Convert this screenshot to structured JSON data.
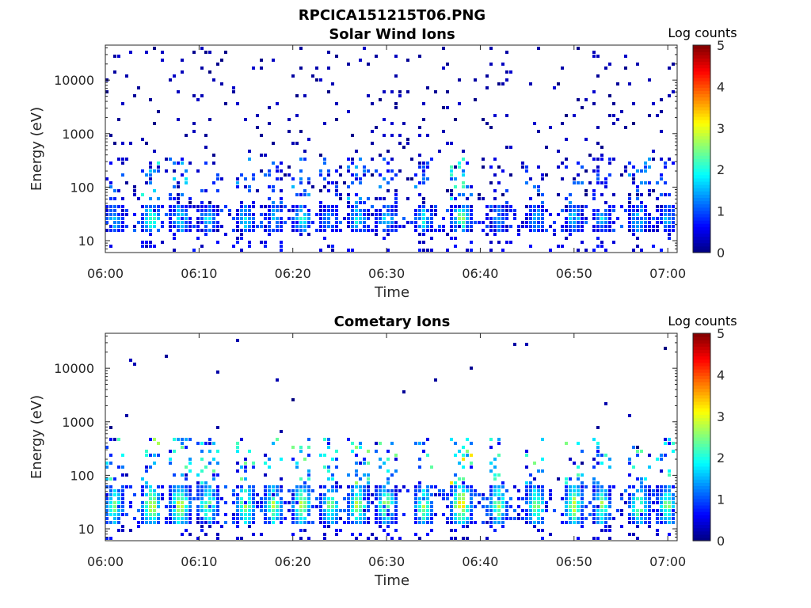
{
  "figure": {
    "title": "RPCICA151215T06.PNG"
  },
  "chart_data": [
    {
      "type": "heatmap",
      "title": "Solar Wind Ions",
      "xlabel": "Time",
      "ylabel": "Energy (eV)",
      "x_ticks": [
        "06:00",
        "06:10",
        "06:20",
        "06:30",
        "06:40",
        "06:50",
        "07:00"
      ],
      "x_range": [
        "06:00",
        "07:01"
      ],
      "y_scale": "log",
      "y_ticks": [
        "10",
        "100",
        "1000",
        "10000"
      ],
      "y_range": [
        6,
        45000
      ],
      "colorbar": {
        "label": "Log counts",
        "range": [
          0,
          5
        ],
        "ticks": [
          "0",
          "1",
          "2",
          "3",
          "4",
          "5"
        ],
        "colormap": "jet"
      },
      "band_energy_eV": [
        14,
        45
      ],
      "band_peak_log_counts": 2.6,
      "background_sparse_log_counts": 0.4,
      "bursts": [
        {
          "t": "06:01",
          "peak": 1.8
        },
        {
          "t": "06:05",
          "peak": 2.6
        },
        {
          "t": "06:08",
          "peak": 2.3
        },
        {
          "t": "06:11",
          "peak": 1.9
        },
        {
          "t": "06:15",
          "peak": 2.0
        },
        {
          "t": "06:18",
          "peak": 1.8
        },
        {
          "t": "06:21",
          "peak": 2.2
        },
        {
          "t": "06:24",
          "peak": 1.7
        },
        {
          "t": "06:27",
          "peak": 2.3
        },
        {
          "t": "06:30",
          "peak": 1.9
        },
        {
          "t": "06:34",
          "peak": 2.0
        },
        {
          "t": "06:38",
          "peak": 2.8
        },
        {
          "t": "06:42",
          "peak": 1.6
        },
        {
          "t": "06:46",
          "peak": 1.8
        },
        {
          "t": "06:50",
          "peak": 1.9
        },
        {
          "t": "06:53",
          "peak": 1.7
        },
        {
          "t": "06:57",
          "peak": 2.0
        },
        {
          "t": "07:00",
          "peak": 1.7
        }
      ]
    },
    {
      "type": "heatmap",
      "title": "Cometary Ions",
      "xlabel": "Time",
      "ylabel": "Energy (eV)",
      "x_ticks": [
        "06:00",
        "06:10",
        "06:20",
        "06:30",
        "06:40",
        "06:50",
        "07:00"
      ],
      "x_range": [
        "06:00",
        "07:01"
      ],
      "y_scale": "log",
      "y_ticks": [
        "10",
        "100",
        "1000",
        "10000"
      ],
      "y_range": [
        6,
        45000
      ],
      "colorbar": {
        "label": "Log counts",
        "range": [
          0,
          5
        ],
        "ticks": [
          "0",
          "1",
          "2",
          "3",
          "4",
          "5"
        ],
        "colormap": "jet"
      },
      "band_energy_eV": [
        12,
        60
      ],
      "band_peak_log_counts": 3.3,
      "background_sparse_log_counts": 0.3,
      "bursts": [
        {
          "t": "06:01",
          "peak": 2.8
        },
        {
          "t": "06:05",
          "peak": 3.3
        },
        {
          "t": "06:08",
          "peak": 3.4
        },
        {
          "t": "06:11",
          "peak": 2.9
        },
        {
          "t": "06:15",
          "peak": 3.0
        },
        {
          "t": "06:18",
          "peak": 2.9
        },
        {
          "t": "06:21",
          "peak": 3.1
        },
        {
          "t": "06:24",
          "peak": 2.8
        },
        {
          "t": "06:27",
          "peak": 3.2
        },
        {
          "t": "06:30",
          "peak": 3.0
        },
        {
          "t": "06:34",
          "peak": 2.9
        },
        {
          "t": "06:38",
          "peak": 3.8
        },
        {
          "t": "06:42",
          "peak": 2.9
        },
        {
          "t": "06:46",
          "peak": 3.0
        },
        {
          "t": "06:50",
          "peak": 3.1
        },
        {
          "t": "06:53",
          "peak": 2.7
        },
        {
          "t": "06:57",
          "peak": 3.0
        },
        {
          "t": "07:00",
          "peak": 2.8
        }
      ]
    }
  ]
}
